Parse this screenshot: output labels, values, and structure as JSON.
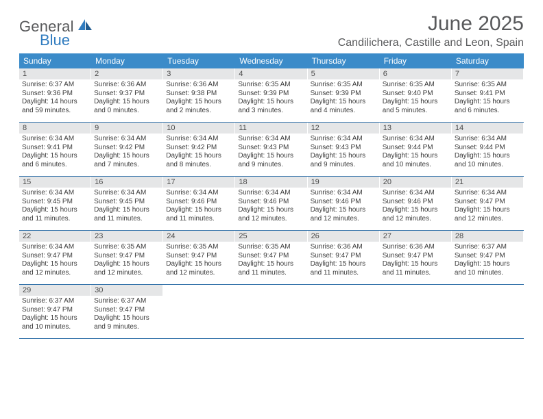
{
  "logo": {
    "word1": "General",
    "word2": "Blue"
  },
  "title": "June 2025",
  "location": "Candilichera, Castille and Leon, Spain",
  "colors": {
    "header_bg": "#3b8bc9",
    "header_text": "#ffffff",
    "daynum_bg": "#e5e6e7",
    "week_border": "#2f6fa8",
    "title_color": "#58595b",
    "logo_gray": "#58595b",
    "logo_blue": "#2f7bbf"
  },
  "dow": [
    "Sunday",
    "Monday",
    "Tuesday",
    "Wednesday",
    "Thursday",
    "Friday",
    "Saturday"
  ],
  "days": [
    {
      "n": "1",
      "sr": "6:37 AM",
      "ss": "9:36 PM",
      "dl": "14 hours and 59 minutes."
    },
    {
      "n": "2",
      "sr": "6:36 AM",
      "ss": "9:37 PM",
      "dl": "15 hours and 0 minutes."
    },
    {
      "n": "3",
      "sr": "6:36 AM",
      "ss": "9:38 PM",
      "dl": "15 hours and 2 minutes."
    },
    {
      "n": "4",
      "sr": "6:35 AM",
      "ss": "9:39 PM",
      "dl": "15 hours and 3 minutes."
    },
    {
      "n": "5",
      "sr": "6:35 AM",
      "ss": "9:39 PM",
      "dl": "15 hours and 4 minutes."
    },
    {
      "n": "6",
      "sr": "6:35 AM",
      "ss": "9:40 PM",
      "dl": "15 hours and 5 minutes."
    },
    {
      "n": "7",
      "sr": "6:35 AM",
      "ss": "9:41 PM",
      "dl": "15 hours and 6 minutes."
    },
    {
      "n": "8",
      "sr": "6:34 AM",
      "ss": "9:41 PM",
      "dl": "15 hours and 6 minutes."
    },
    {
      "n": "9",
      "sr": "6:34 AM",
      "ss": "9:42 PM",
      "dl": "15 hours and 7 minutes."
    },
    {
      "n": "10",
      "sr": "6:34 AM",
      "ss": "9:42 PM",
      "dl": "15 hours and 8 minutes."
    },
    {
      "n": "11",
      "sr": "6:34 AM",
      "ss": "9:43 PM",
      "dl": "15 hours and 9 minutes."
    },
    {
      "n": "12",
      "sr": "6:34 AM",
      "ss": "9:43 PM",
      "dl": "15 hours and 9 minutes."
    },
    {
      "n": "13",
      "sr": "6:34 AM",
      "ss": "9:44 PM",
      "dl": "15 hours and 10 minutes."
    },
    {
      "n": "14",
      "sr": "6:34 AM",
      "ss": "9:44 PM",
      "dl": "15 hours and 10 minutes."
    },
    {
      "n": "15",
      "sr": "6:34 AM",
      "ss": "9:45 PM",
      "dl": "15 hours and 11 minutes."
    },
    {
      "n": "16",
      "sr": "6:34 AM",
      "ss": "9:45 PM",
      "dl": "15 hours and 11 minutes."
    },
    {
      "n": "17",
      "sr": "6:34 AM",
      "ss": "9:46 PM",
      "dl": "15 hours and 11 minutes."
    },
    {
      "n": "18",
      "sr": "6:34 AM",
      "ss": "9:46 PM",
      "dl": "15 hours and 12 minutes."
    },
    {
      "n": "19",
      "sr": "6:34 AM",
      "ss": "9:46 PM",
      "dl": "15 hours and 12 minutes."
    },
    {
      "n": "20",
      "sr": "6:34 AM",
      "ss": "9:46 PM",
      "dl": "15 hours and 12 minutes."
    },
    {
      "n": "21",
      "sr": "6:34 AM",
      "ss": "9:47 PM",
      "dl": "15 hours and 12 minutes."
    },
    {
      "n": "22",
      "sr": "6:34 AM",
      "ss": "9:47 PM",
      "dl": "15 hours and 12 minutes."
    },
    {
      "n": "23",
      "sr": "6:35 AM",
      "ss": "9:47 PM",
      "dl": "15 hours and 12 minutes."
    },
    {
      "n": "24",
      "sr": "6:35 AM",
      "ss": "9:47 PM",
      "dl": "15 hours and 12 minutes."
    },
    {
      "n": "25",
      "sr": "6:35 AM",
      "ss": "9:47 PM",
      "dl": "15 hours and 11 minutes."
    },
    {
      "n": "26",
      "sr": "6:36 AM",
      "ss": "9:47 PM",
      "dl": "15 hours and 11 minutes."
    },
    {
      "n": "27",
      "sr": "6:36 AM",
      "ss": "9:47 PM",
      "dl": "15 hours and 11 minutes."
    },
    {
      "n": "28",
      "sr": "6:37 AM",
      "ss": "9:47 PM",
      "dl": "15 hours and 10 minutes."
    },
    {
      "n": "29",
      "sr": "6:37 AM",
      "ss": "9:47 PM",
      "dl": "15 hours and 10 minutes."
    },
    {
      "n": "30",
      "sr": "6:37 AM",
      "ss": "9:47 PM",
      "dl": "15 hours and 9 minutes."
    }
  ],
  "labels": {
    "sunrise": "Sunrise: ",
    "sunset": "Sunset: ",
    "daylight": "Daylight: "
  },
  "layout": {
    "start_weekday": 0,
    "total_cells": 35
  }
}
